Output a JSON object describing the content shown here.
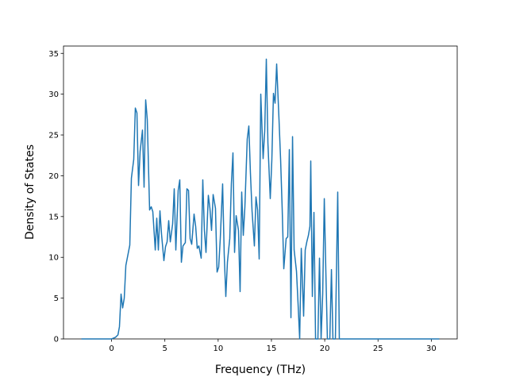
{
  "chart_data": {
    "type": "line",
    "xlabel": "Frequency (THz)",
    "ylabel": "Density of States",
    "xlim": [
      -4.51,
      32.43
    ],
    "ylim": [
      0,
      35.9
    ],
    "xticks": [
      0,
      5,
      10,
      15,
      20,
      25,
      30
    ],
    "yticks": [
      0,
      5,
      10,
      15,
      20,
      25,
      30,
      35
    ],
    "series": [
      {
        "color": "#1f77b4",
        "x": [
          -2.83,
          0,
          0.37,
          0.6,
          0.74,
          0.89,
          1.04,
          1.19,
          1.34,
          1.71,
          1.86,
          2.08,
          2.23,
          2.38,
          2.53,
          2.68,
          2.9,
          3.05,
          3.2,
          3.35,
          3.57,
          3.72,
          3.87,
          4.1,
          4.24,
          4.39,
          4.54,
          4.69,
          4.91,
          5.06,
          5.21,
          5.36,
          5.51,
          5.73,
          5.88,
          6.03,
          6.25,
          6.4,
          6.55,
          6.7,
          6.92,
          7.07,
          7.22,
          7.37,
          7.52,
          7.74,
          7.89,
          8.04,
          8.19,
          8.41,
          8.56,
          8.71,
          8.86,
          9.08,
          9.23,
          9.38,
          9.53,
          9.75,
          9.9,
          10.05,
          10.2,
          10.42,
          10.57,
          10.72,
          10.87,
          11.09,
          11.24,
          11.39,
          11.54,
          11.69,
          11.91,
          12.06,
          12.21,
          12.36,
          12.51,
          12.73,
          12.88,
          13.03,
          13.18,
          13.4,
          13.55,
          13.7,
          13.85,
          14.0,
          14.22,
          14.37,
          14.52,
          14.67,
          14.89,
          15.04,
          15.19,
          15.34,
          15.49,
          15.71,
          15.86,
          16.01,
          16.16,
          16.38,
          16.53,
          16.68,
          16.83,
          16.98,
          17.13,
          17.35,
          17.5,
          17.65,
          17.8,
          18.02,
          18.17,
          18.32,
          18.47,
          18.61,
          18.69,
          18.84,
          18.99,
          19.14,
          19.36,
          19.51,
          19.66,
          19.81,
          19.96,
          20.1,
          20.25,
          20.48,
          20.63,
          20.77,
          21.0,
          21.22,
          21.37,
          30.75
        ],
        "values": [
          0,
          0,
          0.2,
          0.5,
          1.5,
          5.5,
          3.8,
          5,
          9,
          11.5,
          19.7,
          22,
          28.3,
          27.7,
          18.8,
          23,
          25.6,
          18.6,
          29.3,
          26.9,
          15.8,
          16.2,
          15.6,
          10.9,
          14.8,
          10.9,
          15.7,
          12.8,
          9.6,
          11.3,
          11.9,
          14.5,
          11.9,
          14.1,
          18.4,
          10.9,
          18.2,
          19.5,
          9.4,
          11.4,
          11.8,
          18.4,
          18.2,
          12.3,
          11.6,
          15.3,
          13.8,
          11.1,
          11.4,
          9.9,
          19.5,
          13.3,
          10.6,
          17.6,
          16,
          13.3,
          17.7,
          16,
          8.2,
          8.8,
          12.3,
          19,
          10.4,
          5.2,
          9.4,
          12.3,
          19,
          22.8,
          10.6,
          15.1,
          13.3,
          5.8,
          18,
          12.7,
          16.2,
          24.5,
          26.1,
          20.3,
          15.7,
          11.4,
          17.4,
          15.8,
          9.8,
          30,
          22.1,
          25.5,
          34.3,
          24,
          17.2,
          22,
          30.1,
          28.9,
          33.7,
          26.9,
          22,
          15.9,
          8.6,
          12.3,
          12.5,
          23.2,
          2.6,
          24.8,
          10.9,
          8.3,
          4.3,
          0,
          11.1,
          2.8,
          10.9,
          11.9,
          12.7,
          13.8,
          21.8,
          5.2,
          15.5,
          0,
          0,
          9.9,
          0,
          5.5,
          17.2,
          8.6,
          0,
          0,
          8.5,
          0,
          0,
          18,
          0,
          0
        ]
      }
    ]
  }
}
